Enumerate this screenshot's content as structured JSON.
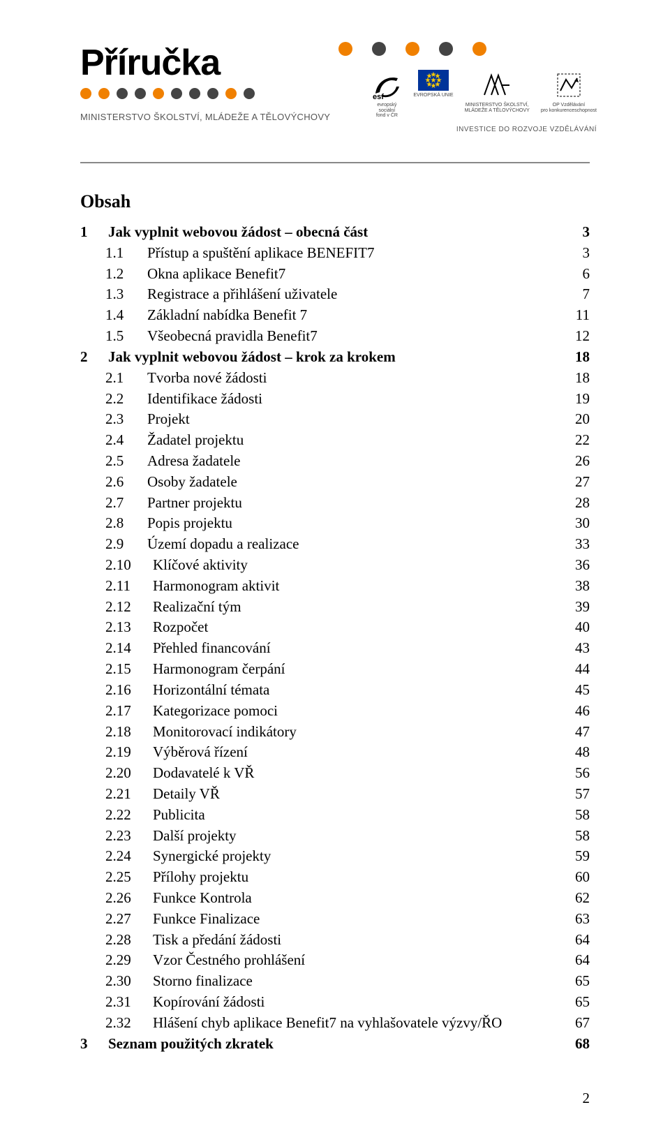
{
  "header": {
    "brand": "Příručka",
    "subministry": "MINISTERSTVO ŠKOLSTVÍ, MLÁDEŽE A TĚLOVÝCHOVY",
    "invest_line": "INVESTICE DO ROZVOJE VZDĚLÁVÁNÍ",
    "brand_dots": [
      "#f08000",
      "#f08000",
      "#444444",
      "#444444",
      "#f08000",
      "#444444",
      "#444444",
      "#444444",
      "#f08000",
      "#444444"
    ],
    "strip_small_dots": [
      "#f08000",
      "#444444",
      "#f08000",
      "#444444",
      "#f08000"
    ],
    "logos": {
      "esf_label1": "evropský",
      "esf_label2": "sociální",
      "esf_label3": "fond v ČR",
      "eu_label": "EVROPSKÁ UNIE",
      "msmt_label1": "MINISTERSTVO ŠKOLSTVÍ,",
      "msmt_label2": "MLÁDEŽE A TĚLOVÝCHOVY",
      "op_label1": "OP Vzdělávání",
      "op_label2": "pro konkurenceschopnost"
    }
  },
  "toc": {
    "title": "Obsah",
    "entries": [
      {
        "level": 1,
        "num": "1",
        "label": "Jak vyplnit webovou žádost – obecná část",
        "page": "3"
      },
      {
        "level": 2,
        "num": "1.1",
        "label": "Přístup a spuštění aplikace BENEFIT7",
        "page": "3"
      },
      {
        "level": 2,
        "num": "1.2",
        "label": "Okna aplikace Benefit7",
        "page": "6"
      },
      {
        "level": 2,
        "num": "1.3",
        "label": "Registrace a přihlášení uživatele",
        "page": "7"
      },
      {
        "level": 2,
        "num": "1.4",
        "label": "Základní nabídka Benefit 7",
        "page": "11"
      },
      {
        "level": 2,
        "num": "1.5",
        "label": "Všeobecná pravidla Benefit7",
        "page": "12"
      },
      {
        "level": 1,
        "num": "2",
        "label": "Jak vyplnit webovou žádost – krok za krokem",
        "page": "18"
      },
      {
        "level": 2,
        "num": "2.1",
        "label": "Tvorba nové žádosti",
        "page": "18"
      },
      {
        "level": 2,
        "num": "2.2",
        "label": "Identifikace žádosti",
        "page": "19"
      },
      {
        "level": 2,
        "num": "2.3",
        "label": "Projekt",
        "page": "20"
      },
      {
        "level": 2,
        "num": "2.4",
        "label": "Žadatel projektu",
        "page": "22"
      },
      {
        "level": 2,
        "num": "2.5",
        "label": "Adresa žadatele",
        "page": "26"
      },
      {
        "level": 2,
        "num": "2.6",
        "label": "Osoby žadatele",
        "page": "27"
      },
      {
        "level": 2,
        "num": "2.7",
        "label": "Partner projektu",
        "page": "28"
      },
      {
        "level": 2,
        "num": "2.8",
        "label": "Popis projektu",
        "page": "30"
      },
      {
        "level": 2,
        "num": "2.9",
        "label": "Území dopadu a realizace",
        "page": "33"
      },
      {
        "level": 3,
        "num": "2.10",
        "label": "Klíčové aktivity",
        "page": "36"
      },
      {
        "level": 3,
        "num": "2.11",
        "label": "Harmonogram aktivit",
        "page": "38"
      },
      {
        "level": 3,
        "num": "2.12",
        "label": "Realizační tým",
        "page": "39"
      },
      {
        "level": 3,
        "num": "2.13",
        "label": "Rozpočet",
        "page": "40"
      },
      {
        "level": 3,
        "num": "2.14",
        "label": "Přehled financování",
        "page": "43"
      },
      {
        "level": 3,
        "num": "2.15",
        "label": "Harmonogram čerpání",
        "page": "44"
      },
      {
        "level": 3,
        "num": "2.16",
        "label": "Horizontální témata",
        "page": "45"
      },
      {
        "level": 3,
        "num": "2.17",
        "label": "Kategorizace pomoci",
        "page": "46"
      },
      {
        "level": 3,
        "num": "2.18",
        "label": "Monitorovací indikátory",
        "page": "47"
      },
      {
        "level": 3,
        "num": "2.19",
        "label": "Výběrová řízení",
        "page": "48"
      },
      {
        "level": 3,
        "num": "2.20",
        "label": "Dodavatelé k VŘ",
        "page": "56"
      },
      {
        "level": 3,
        "num": "2.21",
        "label": "Detaily VŘ",
        "page": "57"
      },
      {
        "level": 3,
        "num": "2.22",
        "label": "Publicita",
        "page": "58"
      },
      {
        "level": 3,
        "num": "2.23",
        "label": "Další projekty",
        "page": "58"
      },
      {
        "level": 3,
        "num": "2.24",
        "label": "Synergické projekty",
        "page": "59"
      },
      {
        "level": 3,
        "num": "2.25",
        "label": "Přílohy projektu",
        "page": "60"
      },
      {
        "level": 3,
        "num": "2.26",
        "label": "Funkce Kontrola",
        "page": "62"
      },
      {
        "level": 3,
        "num": "2.27",
        "label": "Funkce Finalizace",
        "page": "63"
      },
      {
        "level": 3,
        "num": "2.28",
        "label": "Tisk a předání žádosti",
        "page": "64"
      },
      {
        "level": 3,
        "num": "2.29",
        "label": "Vzor Čestného prohlášení",
        "page": "64"
      },
      {
        "level": 3,
        "num": "2.30",
        "label": "Storno finalizace",
        "page": "65"
      },
      {
        "level": 3,
        "num": "2.31",
        "label": "Kopírování žádosti",
        "page": "65"
      },
      {
        "level": 3,
        "num": "2.32",
        "label": "Hlášení chyb aplikace Benefit7 na vyhlašovatele výzvy/ŘO",
        "page": "67"
      },
      {
        "level": 1,
        "num": "3",
        "label": "Seznam použitých zkratek",
        "page": "68"
      }
    ]
  },
  "page_number": "2"
}
